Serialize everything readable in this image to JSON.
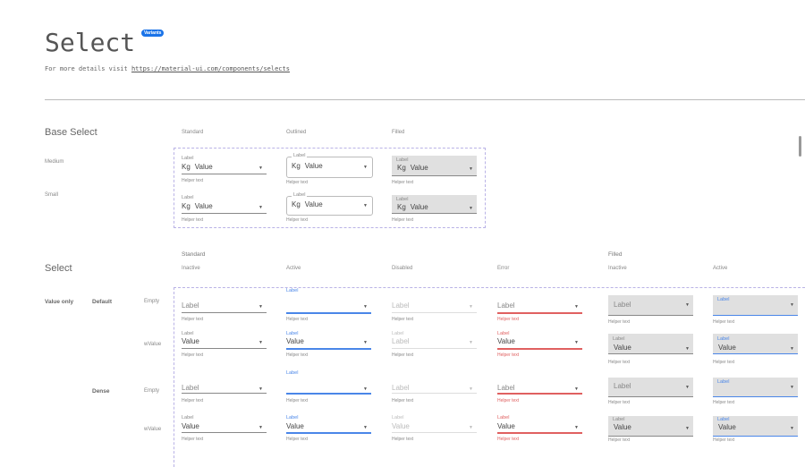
{
  "header": {
    "title": "Select",
    "badge": "Variants",
    "intro": "For more details visit ",
    "link": "https://material-ui.com/components/selects"
  },
  "base": {
    "title": "Base Select",
    "columns": [
      "Standard",
      "Outlined",
      "Filled"
    ],
    "rows": [
      "Medium",
      "Small"
    ],
    "field": {
      "label": "Label",
      "prefix": "Kg",
      "value": "Value",
      "helper": "Helper text"
    }
  },
  "select": {
    "title": "Select",
    "group_standard": "Standard",
    "group_filled": "Filled",
    "columns": [
      "Inactive",
      "Active",
      "Disabled",
      "Error",
      "Inactive",
      "Active"
    ],
    "section": "Value only",
    "densities": [
      "Default",
      "Dense"
    ],
    "row_states": [
      "Empty",
      "wValue"
    ],
    "field": {
      "label": "Label",
      "value": "Value",
      "helper": "Helper text"
    }
  },
  "colors": {
    "accent": "#4a86e8",
    "error": "#e06060",
    "badge": "#1a73e8",
    "filled_bg": "#e0e0e0"
  },
  "icons": {
    "dropdown": "caret-down-icon"
  }
}
